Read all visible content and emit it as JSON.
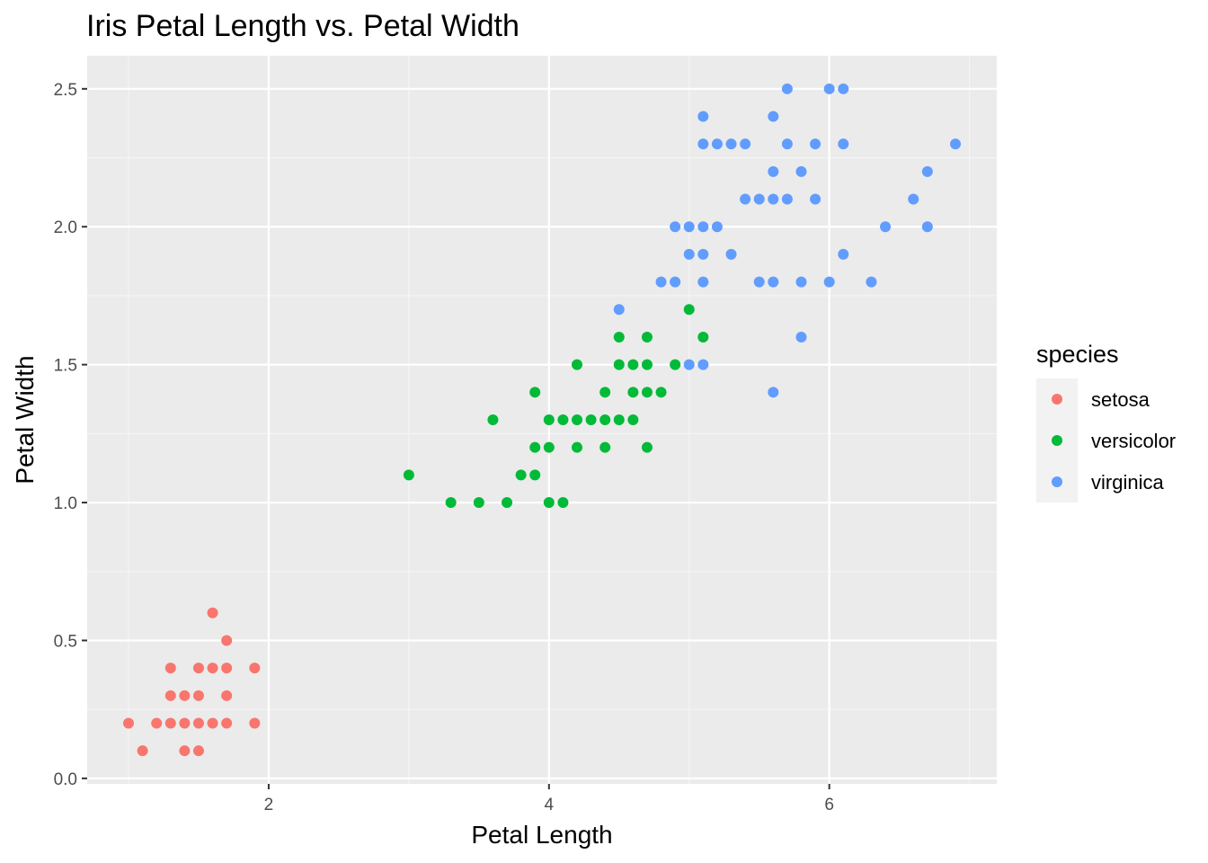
{
  "chart_data": {
    "type": "scatter",
    "title": "Iris Petal Length vs. Petal Width",
    "xlabel": "Petal Length",
    "ylabel": "Petal Width",
    "xlim": [
      0.705,
      7.195
    ],
    "ylim": [
      -0.02,
      2.62
    ],
    "x_ticks": [
      2,
      4,
      6
    ],
    "x_tick_labels": [
      "2",
      "4",
      "6"
    ],
    "y_ticks": [
      0,
      0.5,
      1,
      1.5,
      2,
      2.5
    ],
    "y_tick_labels": [
      "0.0",
      "0.5",
      "1.0",
      "1.5",
      "2.0",
      "2.5"
    ],
    "grid": true,
    "background": "#ebebeb",
    "grid_color": "#ffffff",
    "legend": {
      "title": "species",
      "position": "right"
    },
    "series": [
      {
        "name": "setosa",
        "color": "#f8766d",
        "points": [
          [
            1.0,
            0.2
          ],
          [
            1.1,
            0.1
          ],
          [
            1.2,
            0.2
          ],
          [
            1.3,
            0.2
          ],
          [
            1.3,
            0.3
          ],
          [
            1.3,
            0.4
          ],
          [
            1.4,
            0.1
          ],
          [
            1.4,
            0.2
          ],
          [
            1.4,
            0.3
          ],
          [
            1.5,
            0.1
          ],
          [
            1.5,
            0.2
          ],
          [
            1.5,
            0.3
          ],
          [
            1.5,
            0.4
          ],
          [
            1.6,
            0.2
          ],
          [
            1.6,
            0.4
          ],
          [
            1.6,
            0.6
          ],
          [
            1.7,
            0.2
          ],
          [
            1.7,
            0.3
          ],
          [
            1.7,
            0.4
          ],
          [
            1.7,
            0.5
          ],
          [
            1.9,
            0.2
          ],
          [
            1.9,
            0.4
          ]
        ]
      },
      {
        "name": "versicolor",
        "color": "#00ba38",
        "points": [
          [
            3.0,
            1.1
          ],
          [
            3.3,
            1.0
          ],
          [
            3.5,
            1.0
          ],
          [
            3.6,
            1.3
          ],
          [
            3.7,
            1.0
          ],
          [
            3.8,
            1.1
          ],
          [
            3.9,
            1.1
          ],
          [
            3.9,
            1.2
          ],
          [
            3.9,
            1.4
          ],
          [
            4.0,
            1.0
          ],
          [
            4.0,
            1.2
          ],
          [
            4.0,
            1.3
          ],
          [
            4.1,
            1.0
          ],
          [
            4.1,
            1.3
          ],
          [
            4.2,
            1.2
          ],
          [
            4.2,
            1.3
          ],
          [
            4.2,
            1.5
          ],
          [
            4.3,
            1.3
          ],
          [
            4.4,
            1.2
          ],
          [
            4.4,
            1.3
          ],
          [
            4.4,
            1.4
          ],
          [
            4.5,
            1.3
          ],
          [
            4.5,
            1.5
          ],
          [
            4.5,
            1.6
          ],
          [
            4.6,
            1.3
          ],
          [
            4.6,
            1.4
          ],
          [
            4.6,
            1.5
          ],
          [
            4.7,
            1.2
          ],
          [
            4.7,
            1.4
          ],
          [
            4.7,
            1.5
          ],
          [
            4.7,
            1.6
          ],
          [
            4.8,
            1.4
          ],
          [
            4.9,
            1.5
          ],
          [
            5.0,
            1.7
          ],
          [
            5.1,
            1.6
          ]
        ]
      },
      {
        "name": "virginica",
        "color": "#619cff",
        "points": [
          [
            4.5,
            1.7
          ],
          [
            4.8,
            1.8
          ],
          [
            4.9,
            1.8
          ],
          [
            4.9,
            2.0
          ],
          [
            5.0,
            1.5
          ],
          [
            5.0,
            1.9
          ],
          [
            5.0,
            2.0
          ],
          [
            5.1,
            1.5
          ],
          [
            5.1,
            1.8
          ],
          [
            5.1,
            1.9
          ],
          [
            5.1,
            2.0
          ],
          [
            5.1,
            2.3
          ],
          [
            5.1,
            2.4
          ],
          [
            5.2,
            2.0
          ],
          [
            5.2,
            2.3
          ],
          [
            5.3,
            1.9
          ],
          [
            5.3,
            2.3
          ],
          [
            5.4,
            2.1
          ],
          [
            5.4,
            2.3
          ],
          [
            5.5,
            1.8
          ],
          [
            5.5,
            2.1
          ],
          [
            5.6,
            1.4
          ],
          [
            5.6,
            1.8
          ],
          [
            5.6,
            2.1
          ],
          [
            5.6,
            2.2
          ],
          [
            5.6,
            2.4
          ],
          [
            5.7,
            2.1
          ],
          [
            5.7,
            2.3
          ],
          [
            5.7,
            2.5
          ],
          [
            5.8,
            1.6
          ],
          [
            5.8,
            1.8
          ],
          [
            5.8,
            2.2
          ],
          [
            5.9,
            2.1
          ],
          [
            5.9,
            2.3
          ],
          [
            6.0,
            1.8
          ],
          [
            6.0,
            2.5
          ],
          [
            6.1,
            1.9
          ],
          [
            6.1,
            2.3
          ],
          [
            6.1,
            2.5
          ],
          [
            6.3,
            1.8
          ],
          [
            6.4,
            2.0
          ],
          [
            6.6,
            2.1
          ],
          [
            6.7,
            2.0
          ],
          [
            6.7,
            2.2
          ],
          [
            6.9,
            2.3
          ]
        ]
      }
    ]
  }
}
